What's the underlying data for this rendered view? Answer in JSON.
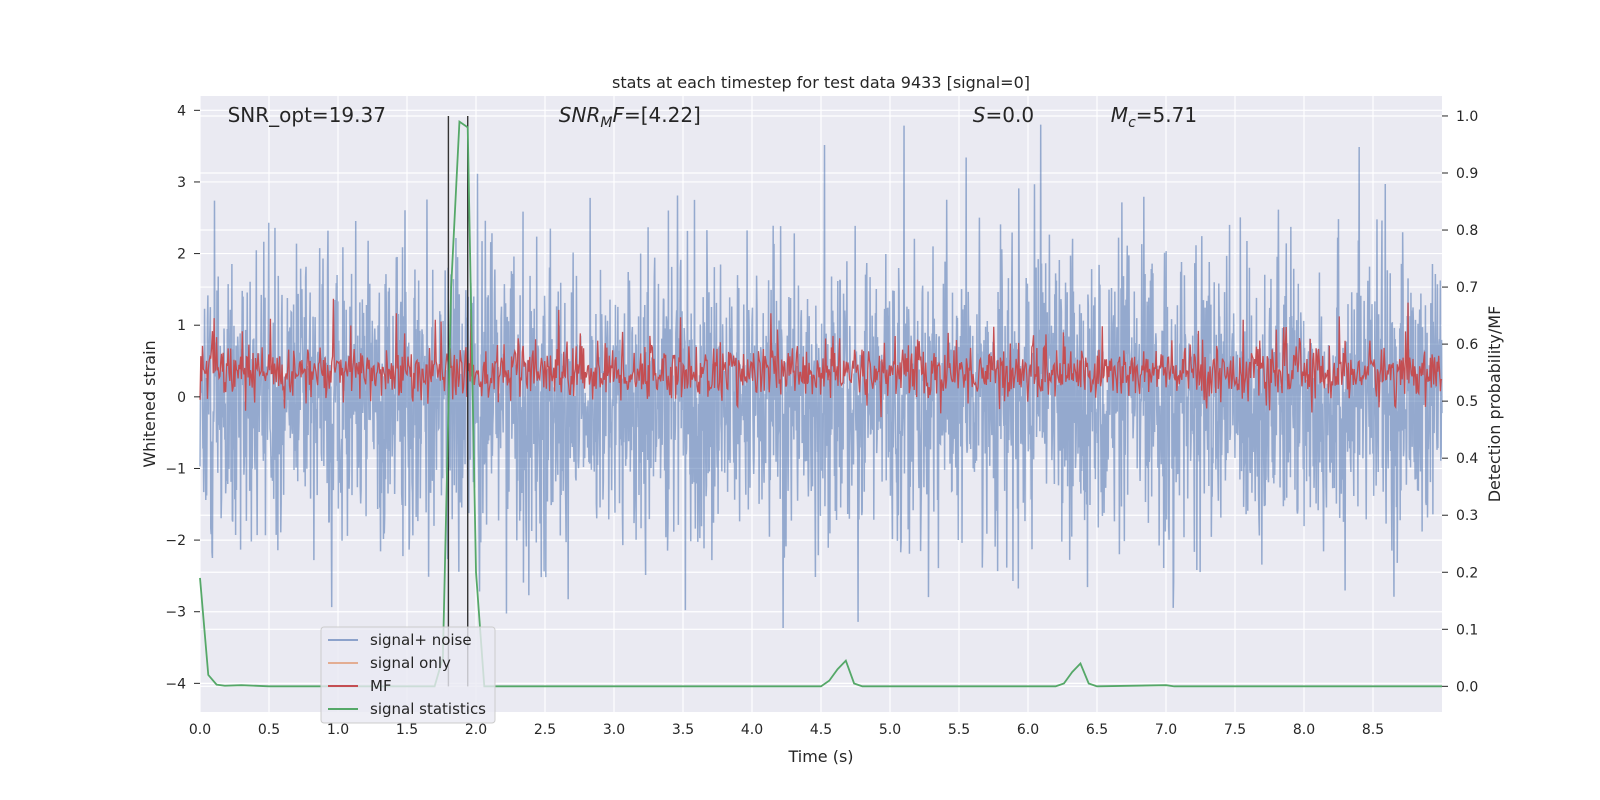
{
  "chart_data": {
    "type": "line",
    "title": "stats at each timestep for test data 9433 [signal=0]",
    "xlabel": "Time (s)",
    "ylabel": "Whitened strain",
    "y2label": "Detection probability/MF",
    "xlim": [
      0,
      9.0
    ],
    "ylim": [
      -4.4,
      4.2
    ],
    "y2lim": [
      -0.045,
      1.035
    ],
    "xticks": [
      "0.0",
      "0.5",
      "1.0",
      "1.5",
      "2.0",
      "2.5",
      "3.0",
      "3.5",
      "4.0",
      "4.5",
      "5.0",
      "5.5",
      "6.0",
      "6.5",
      "7.0",
      "7.5",
      "8.0",
      "8.5"
    ],
    "yticks": [
      "−4",
      "−3",
      "−2",
      "−1",
      "0",
      "1",
      "2",
      "3",
      "4"
    ],
    "y2ticks": [
      "0.0",
      "0.1",
      "0.2",
      "0.3",
      "0.4",
      "0.5",
      "0.6",
      "0.7",
      "0.8",
      "0.9",
      "1.0"
    ],
    "grid": true,
    "legend_position": "lower-left",
    "annotations": [
      {
        "prefix": "SNR_opt=",
        "sub": "",
        "suffix": "19.37",
        "x": 0.2
      },
      {
        "prefix": "SNR",
        "sub": "M",
        "suffix": "F=[4.22]",
        "italic_prefix": true,
        "x": 2.6
      },
      {
        "prefix": "S",
        "sub": "",
        "suffix": "=0.0",
        "italic_prefix": true,
        "x": 5.6
      },
      {
        "prefix": "M",
        "sub": "c",
        "suffix": "=5.71",
        "italic_prefix": true,
        "x": 6.6
      }
    ],
    "vlines": [
      1.8,
      1.94
    ],
    "series": [
      {
        "name": "signal+ noise",
        "color": "#4c72b0",
        "alpha": 0.5,
        "kind": "noise",
        "amplitude": 1.0,
        "xrange": [
          0,
          9.0
        ]
      },
      {
        "name": "signal only",
        "color": "#dd8452",
        "alpha": 0.5,
        "kind": "flat",
        "x": [],
        "y": []
      },
      {
        "name": "MF",
        "color": "#c44e52",
        "kind": "mf",
        "axis": "y2",
        "mean": 0.55,
        "xrange": [
          0,
          9.0
        ]
      },
      {
        "name": "signal statistics",
        "color": "#55a868",
        "axis": "y2",
        "x": [
          0.0,
          0.06,
          0.12,
          0.18,
          0.3,
          0.5,
          1.0,
          1.7,
          1.76,
          1.82,
          1.88,
          1.94,
          2.0,
          2.06,
          2.12,
          3.0,
          4.0,
          4.5,
          4.56,
          4.62,
          4.68,
          4.74,
          4.8,
          5.0,
          6.0,
          6.2,
          6.26,
          6.32,
          6.38,
          6.44,
          6.5,
          7.0,
          7.06,
          8.0,
          9.0
        ],
        "y": [
          0.19,
          0.02,
          0.003,
          0.001,
          0.002,
          0.0,
          0.0,
          0.0,
          0.05,
          0.7,
          0.99,
          0.98,
          0.2,
          0.0,
          0.0,
          0.0,
          0.0,
          0.0,
          0.01,
          0.03,
          0.045,
          0.005,
          0.0,
          0.0,
          0.0,
          0.0,
          0.005,
          0.025,
          0.04,
          0.005,
          0.0,
          0.002,
          0.0,
          0.0,
          0.0
        ]
      }
    ]
  }
}
